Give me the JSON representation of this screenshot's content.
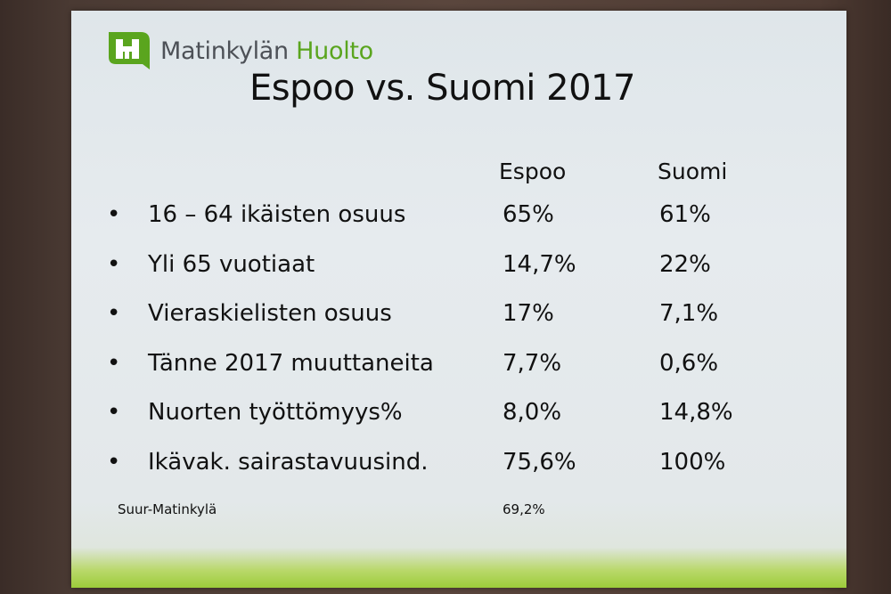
{
  "brand": {
    "name_part1": "Matinkylän",
    "name_part2": "Huolto",
    "logo_icon": "h-logo-icon",
    "brand_color": "#5aa51e"
  },
  "title": "Espoo vs. Suomi 2017",
  "columns": [
    "Espoo",
    "Suomi"
  ],
  "rows": [
    {
      "label": "16 – 64 ikäisten osuus",
      "espoo": "65%",
      "suomi": "61%"
    },
    {
      "label": "Yli 65 vuotiaat",
      "espoo": "14,7%",
      "suomi": "22%"
    },
    {
      "label": "Vieraskielisten osuus",
      "espoo": "17%",
      "suomi": "7,1%"
    },
    {
      "label": "Tänne 2017 muuttaneita",
      "espoo": "7,7%",
      "suomi": "0,6%"
    },
    {
      "label": "Nuorten työttömyys%",
      "espoo": "8,0%",
      "suomi": "14,8%"
    },
    {
      "label": "Ikävak. sairastavuusind.",
      "espoo": "75,6%",
      "suomi": "100%"
    }
  ],
  "footnote": {
    "label": "Suur-Matinkylä",
    "value": "69,2%"
  },
  "bullet": "•"
}
